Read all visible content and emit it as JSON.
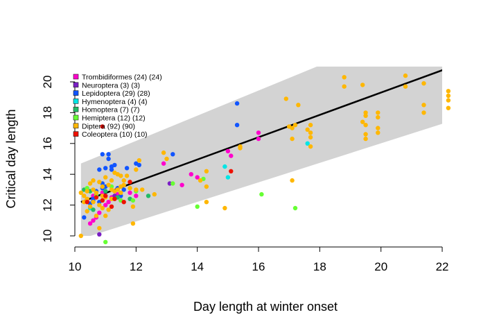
{
  "chart_data": {
    "type": "scatter",
    "xlabel": "Day length at winter onset",
    "ylabel": "Critical day length",
    "xlim": [
      10,
      22
    ],
    "ylim": [
      10,
      20
    ],
    "xticks": [
      "10",
      "12",
      "14",
      "16",
      "18",
      "20",
      "22"
    ],
    "yticks": [
      "10",
      "12",
      "14",
      "16",
      "18",
      "20"
    ],
    "legend_position": "top-left",
    "regression_line": {
      "x": [
        10.2,
        22.2
      ],
      "y": [
        12.2,
        20.9
      ]
    },
    "prediction_band": {
      "x": [
        10.2,
        22.2
      ],
      "lower": [
        9.8,
        17.4
      ],
      "upper": [
        14.7,
        24.5
      ]
    },
    "series": [
      {
        "name": "Trombidiformes (24) (24)",
        "color": "#FF00CC",
        "marker": "circle",
        "points": [
          [
            10.5,
            10.8
          ],
          [
            10.6,
            11.0
          ],
          [
            10.7,
            11.2
          ],
          [
            10.9,
            12.6
          ],
          [
            11.0,
            12.0
          ],
          [
            11.2,
            12.5
          ],
          [
            11.4,
            12.7
          ],
          [
            11.8,
            12.8
          ],
          [
            12.9,
            14.7
          ],
          [
            13.5,
            13.3
          ],
          [
            13.8,
            14.0
          ],
          [
            14.0,
            13.8
          ],
          [
            15.0,
            15.5
          ],
          [
            15.1,
            15.2
          ],
          [
            16.0,
            16.7
          ],
          [
            16.0,
            16.3
          ],
          [
            10.8,
            11.5
          ],
          [
            11.1,
            12.2
          ],
          [
            11.5,
            12.3
          ],
          [
            10.4,
            12.3
          ],
          [
            10.6,
            12.6
          ],
          [
            11.3,
            12.9
          ],
          [
            10.9,
            12.8
          ],
          [
            12.0,
            12.6
          ]
        ]
      },
      {
        "name": "Neuroptera (3) (3)",
        "color": "#7A1FC4",
        "marker": "circle",
        "points": [
          [
            10.8,
            10.1
          ],
          [
            11.3,
            12.6
          ],
          [
            13.1,
            13.4
          ]
        ]
      },
      {
        "name": "Lepidoptera (29) (28)",
        "color": "#1155FF",
        "marker": "circle",
        "points": [
          [
            10.3,
            11.2
          ],
          [
            10.6,
            12.4
          ],
          [
            10.7,
            12.6
          ],
          [
            10.8,
            14.3
          ],
          [
            10.9,
            15.3
          ],
          [
            11.0,
            14.4
          ],
          [
            11.1,
            15.3
          ],
          [
            11.1,
            15.0
          ],
          [
            11.2,
            14.5
          ],
          [
            11.3,
            14.6
          ],
          [
            11.0,
            13.2
          ],
          [
            10.9,
            13.4
          ],
          [
            11.5,
            12.6
          ],
          [
            11.7,
            14.4
          ],
          [
            12.0,
            14.7
          ],
          [
            12.1,
            14.6
          ],
          [
            11.2,
            14.3
          ],
          [
            10.8,
            12.2
          ],
          [
            10.5,
            12.1
          ],
          [
            10.7,
            12.9
          ],
          [
            11.4,
            13.1
          ],
          [
            13.2,
            15.3
          ],
          [
            15.3,
            18.6
          ],
          [
            15.3,
            17.2
          ],
          [
            11.0,
            12.6
          ],
          [
            10.6,
            12.3
          ],
          [
            11.6,
            13.0
          ],
          [
            10.9,
            13.1
          ]
        ]
      },
      {
        "name": "Hymenoptera (4) (4)",
        "color": "#00E5E5",
        "marker": "circle",
        "points": [
          [
            14.9,
            14.5
          ],
          [
            15.0,
            13.8
          ],
          [
            17.6,
            16.0
          ],
          [
            10.5,
            11.8
          ]
        ]
      },
      {
        "name": "Homoptera (7) (7)",
        "color": "#22BB66",
        "marker": "circle",
        "points": [
          [
            10.3,
            13.0
          ],
          [
            10.5,
            12.9
          ],
          [
            11.0,
            12.9
          ],
          [
            11.4,
            12.5
          ],
          [
            11.8,
            12.4
          ],
          [
            12.4,
            12.6
          ],
          [
            10.6,
            11.7
          ]
        ]
      },
      {
        "name": "Hemiptera (12) (12)",
        "color": "#66FF33",
        "marker": "circle",
        "points": [
          [
            10.4,
            13.1
          ],
          [
            10.7,
            12.6
          ],
          [
            11.0,
            9.6
          ],
          [
            11.2,
            13.2
          ],
          [
            11.5,
            12.3
          ],
          [
            11.9,
            12.3
          ],
          [
            12.0,
            12.9
          ],
          [
            13.2,
            13.4
          ],
          [
            14.0,
            11.9
          ],
          [
            16.1,
            12.7
          ],
          [
            17.2,
            11.8
          ],
          [
            14.2,
            13.7
          ]
        ]
      },
      {
        "name": "Diptera (92) (90)",
        "color": "#FFB700",
        "marker": "circle",
        "points": [
          [
            10.2,
            10.0
          ],
          [
            10.3,
            12.6
          ],
          [
            10.4,
            12.9
          ],
          [
            10.5,
            13.4
          ],
          [
            10.6,
            13.0
          ],
          [
            10.7,
            12.8
          ],
          [
            10.8,
            13.5
          ],
          [
            10.9,
            13.2
          ],
          [
            11.0,
            13.8
          ],
          [
            11.1,
            13.3
          ],
          [
            11.2,
            13.6
          ],
          [
            11.3,
            14.1
          ],
          [
            11.4,
            13.0
          ],
          [
            11.5,
            12.8
          ],
          [
            11.6,
            13.3
          ],
          [
            11.8,
            13.1
          ],
          [
            11.9,
            11.9
          ],
          [
            11.9,
            10.8
          ],
          [
            12.0,
            14.3
          ],
          [
            12.1,
            14.9
          ],
          [
            12.6,
            12.7
          ],
          [
            12.9,
            15.4
          ],
          [
            14.3,
            14.2
          ],
          [
            14.3,
            13.2
          ],
          [
            14.3,
            12.2
          ],
          [
            14.9,
            11.8
          ],
          [
            15.4,
            15.8
          ],
          [
            16.9,
            18.9
          ],
          [
            17.1,
            17.0
          ],
          [
            17.1,
            16.3
          ],
          [
            17.1,
            13.6
          ],
          [
            17.3,
            18.5
          ],
          [
            17.7,
            17.2
          ],
          [
            17.7,
            16.7
          ],
          [
            17.7,
            16.4
          ],
          [
            17.7,
            15.8
          ],
          [
            18.8,
            20.3
          ],
          [
            18.8,
            19.7
          ],
          [
            19.4,
            19.8
          ],
          [
            19.5,
            18.0
          ],
          [
            19.5,
            17.8
          ],
          [
            19.5,
            17.2
          ],
          [
            19.5,
            16.6
          ],
          [
            19.5,
            16.3
          ],
          [
            19.9,
            18.0
          ],
          [
            19.9,
            17.7
          ],
          [
            19.9,
            17.0
          ],
          [
            19.9,
            16.7
          ],
          [
            20.8,
            20.4
          ],
          [
            20.8,
            19.7
          ],
          [
            21.4,
            19.9
          ],
          [
            21.4,
            18.5
          ],
          [
            21.4,
            18.0
          ],
          [
            22.2,
            19.4
          ],
          [
            22.2,
            19.1
          ],
          [
            22.2,
            18.8
          ],
          [
            22.2,
            18.3
          ],
          [
            10.4,
            12.4
          ],
          [
            10.6,
            12.2
          ],
          [
            10.8,
            12.0
          ],
          [
            11.0,
            12.5
          ],
          [
            11.2,
            13.0
          ],
          [
            10.5,
            11.9
          ],
          [
            10.7,
            11.3
          ],
          [
            11.3,
            12.9
          ],
          [
            11.6,
            13.6
          ],
          [
            12.0,
            13.0
          ],
          [
            11.1,
            11.7
          ],
          [
            10.9,
            12.6
          ],
          [
            10.3,
            12.2
          ],
          [
            14.1,
            13.6
          ],
          [
            11.4,
            14.0
          ],
          [
            10.6,
            13.6
          ],
          [
            11.5,
            13.9
          ],
          [
            10.2,
            12.8
          ],
          [
            10.9,
            11.8
          ],
          [
            11.7,
            13.9
          ],
          [
            17.2,
            17.2
          ],
          [
            17.6,
            16.9
          ],
          [
            19.4,
            17.4
          ],
          [
            10.8,
            10.5
          ],
          [
            11.0,
            11.3
          ],
          [
            10.4,
            11.6
          ],
          [
            13.0,
            15.0
          ],
          [
            10.9,
            12.3
          ],
          [
            11.2,
            12.4
          ],
          [
            11.5,
            13.2
          ],
          [
            12.2,
            13.0
          ],
          [
            17.0,
            17.1
          ],
          [
            15.4,
            15.7
          ]
        ]
      },
      {
        "name": "Coleoptera (10) (10)",
        "color": "#EE1100",
        "marker": "circle",
        "points": [
          [
            10.4,
            12.2
          ],
          [
            10.7,
            12.5
          ],
          [
            10.9,
            12.3
          ],
          [
            11.0,
            12.6
          ],
          [
            11.2,
            11.9
          ],
          [
            11.3,
            12.4
          ],
          [
            11.6,
            12.2
          ],
          [
            11.8,
            13.5
          ],
          [
            10.9,
            17.1
          ],
          [
            15.1,
            14.2
          ]
        ]
      }
    ]
  }
}
